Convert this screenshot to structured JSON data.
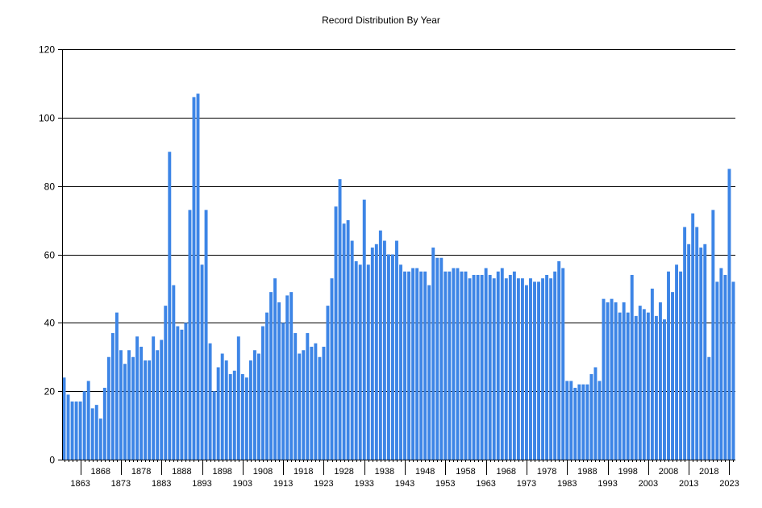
{
  "chart_data": {
    "type": "bar",
    "title": "Record Distribution By Year",
    "xlabel": "",
    "ylabel": "",
    "ylim": [
      0,
      120
    ],
    "yticks": [
      0,
      20,
      40,
      60,
      80,
      100,
      120
    ],
    "grid": "horizontal",
    "bar_color": "#3d85e6",
    "x_start": 1859,
    "x_end": 2024,
    "xticks_lower": [
      1863,
      1873,
      1883,
      1893,
      1903,
      1913,
      1923,
      1933,
      1943,
      1953,
      1963,
      1973,
      1983,
      1993,
      2003,
      2013,
      2023
    ],
    "xticks_upper": [
      1868,
      1878,
      1888,
      1898,
      1908,
      1918,
      1928,
      1938,
      1948,
      1958,
      1968,
      1978,
      1988,
      1998,
      2008,
      2018
    ],
    "values": [
      24,
      19,
      17,
      17,
      17,
      20,
      23,
      15,
      16,
      12,
      21,
      30,
      37,
      43,
      32,
      28,
      32,
      30,
      36,
      33,
      29,
      29,
      36,
      32,
      35,
      45,
      90,
      51,
      39,
      38,
      40,
      73,
      106,
      107,
      57,
      73,
      34,
      20,
      27,
      31,
      29,
      25,
      26,
      36,
      25,
      24,
      29,
      32,
      31,
      39,
      43,
      49,
      53,
      46,
      40,
      48,
      49,
      37,
      31,
      32,
      37,
      33,
      34,
      30,
      33,
      45,
      53,
      74,
      82,
      69,
      70,
      64,
      58,
      57,
      76,
      57,
      62,
      63,
      67,
      64,
      60,
      60,
      64,
      57,
      55,
      55,
      56,
      56,
      55,
      55,
      51,
      62,
      59,
      59,
      55,
      55,
      56,
      56,
      55,
      55,
      53,
      54,
      54,
      54,
      56,
      54,
      53,
      55,
      56,
      53,
      54,
      55,
      53,
      53,
      51,
      53,
      52,
      52,
      53,
      54,
      53,
      55,
      58,
      56,
      23,
      23,
      21,
      22,
      22,
      22,
      25,
      27,
      23,
      47,
      46,
      47,
      46,
      43,
      46,
      43,
      54,
      42,
      45,
      44,
      43,
      50,
      42,
      46,
      41,
      55,
      49,
      57,
      55,
      68,
      63,
      72,
      68,
      62,
      63,
      30,
      73,
      52,
      56,
      54,
      85,
      52
    ]
  }
}
